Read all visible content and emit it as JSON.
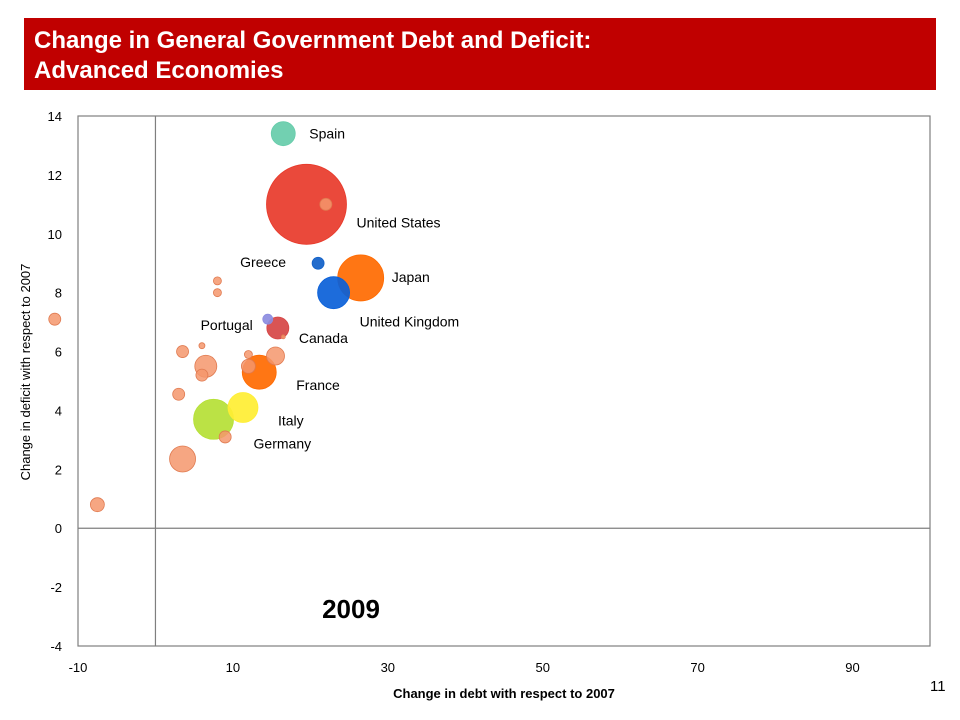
{
  "header": {
    "title_line1": "Change in General Government Debt and Deficit:",
    "title_line2": "Advanced Economies"
  },
  "page_number": "11",
  "colors": {
    "title_bar": "#c00000",
    "axis": "#7f7f7f",
    "small_bubble": "#f4966c"
  },
  "chart_data": {
    "type": "scatter",
    "variant": "bubble",
    "xlabel": "Change in debt with respect to 2007",
    "ylabel": "Change in deficit with respect to 2007",
    "xlim": [
      -10,
      100
    ],
    "ylim": [
      -4,
      14
    ],
    "xticks": [
      "-10",
      "10",
      "30",
      "50",
      "70",
      "90"
    ],
    "yticks": [
      "-4",
      "-2",
      "0",
      "2",
      "4",
      "6",
      "8",
      "10",
      "12",
      "14"
    ],
    "annotation": "2009",
    "grid": false,
    "labeled_points": [
      {
        "label": "Spain",
        "x": 16.5,
        "y": 13.4,
        "size": 12,
        "color": "#66ccaa"
      },
      {
        "label": "United States",
        "x": 19.5,
        "y": 11.0,
        "size": 40,
        "color": "#e8392a"
      },
      {
        "label": "Greece",
        "x": 21.0,
        "y": 9.0,
        "size": 6,
        "color": "#1060c8"
      },
      {
        "label": "Japan",
        "x": 26.5,
        "y": 8.5,
        "size": 23,
        "color": "#ff6a00"
      },
      {
        "label": "United Kingdom",
        "x": 23.0,
        "y": 8.0,
        "size": 16,
        "color": "#0a60d8"
      },
      {
        "label": "Portugal",
        "x": 14.5,
        "y": 7.1,
        "size": 5,
        "color": "#8c8ce0"
      },
      {
        "label": "Canada",
        "x": 15.8,
        "y": 6.8,
        "size": 11,
        "color": "#d64545"
      },
      {
        "label": "France",
        "x": 13.4,
        "y": 5.3,
        "size": 17,
        "color": "#ff6a00"
      },
      {
        "label": "Italy",
        "x": 11.3,
        "y": 4.1,
        "size": 15,
        "color": "#ffee33"
      },
      {
        "label": "Germany",
        "x": 7.5,
        "y": 3.7,
        "size": 20,
        "color": "#b5e035"
      }
    ],
    "other_points": [
      {
        "x": 22.0,
        "y": 11.0,
        "size": 6
      },
      {
        "x": -13.0,
        "y": 7.1,
        "size": 6
      },
      {
        "x": 8.0,
        "y": 8.4,
        "size": 4
      },
      {
        "x": 8.0,
        "y": 8.0,
        "size": 4
      },
      {
        "x": 6.0,
        "y": 6.2,
        "size": 3
      },
      {
        "x": 3.5,
        "y": 6.0,
        "size": 6
      },
      {
        "x": 6.5,
        "y": 5.5,
        "size": 11
      },
      {
        "x": 6.0,
        "y": 5.2,
        "size": 6
      },
      {
        "x": 12.0,
        "y": 5.5,
        "size": 7
      },
      {
        "x": 12.0,
        "y": 5.9,
        "size": 4
      },
      {
        "x": 15.5,
        "y": 5.85,
        "size": 9
      },
      {
        "x": 16.5,
        "y": 6.5,
        "size": 2
      },
      {
        "x": 3.0,
        "y": 4.55,
        "size": 6
      },
      {
        "x": 9.0,
        "y": 3.1,
        "size": 6
      },
      {
        "x": 3.5,
        "y": 2.35,
        "size": 13
      },
      {
        "x": -7.5,
        "y": 0.8,
        "size": 7
      }
    ]
  }
}
